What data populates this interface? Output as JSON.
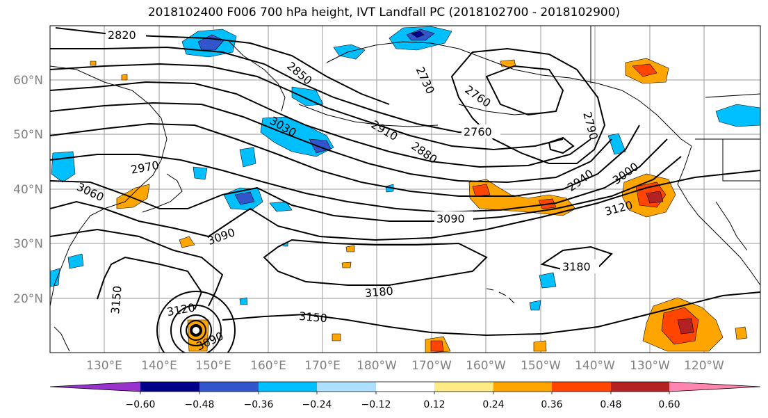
{
  "title": "2018102400 F006 700 hPa height, IVT Landfall PC (2018102700 - 2018102900)",
  "lat_labels": [
    "60°N",
    "50°N",
    "40°N",
    "30°N",
    "20°N"
  ],
  "lon_labels": [
    "130°E",
    "140°E",
    "150°E",
    "160°E",
    "170°E",
    "180°W",
    "170°W",
    "160°W",
    "150°W",
    "140°W",
    "130°W",
    "120°W"
  ],
  "contour_labels": [
    "2820",
    "2850",
    "2730",
    "2760",
    "2760",
    "2790",
    "3030",
    "2910",
    "2880",
    "2970",
    "3060",
    "3090",
    "3090",
    "2940",
    "3000",
    "3120",
    "3180",
    "3180",
    "3150",
    "3120",
    "3150",
    "3090"
  ],
  "colorbar": {
    "colors": [
      "#9932CC",
      "#00008B",
      "#3355CC",
      "#00BFFF",
      "#ADDFFF",
      "#FFFFFF",
      "#FFFFFF",
      "#FFEB85",
      "#FFA500",
      "#FF4500",
      "#B22222",
      "#FF85B0"
    ],
    "tick_labels": [
      "−0.60",
      "−0.48",
      "−0.36",
      "−0.24",
      "−0.12",
      "0.12",
      "0.24",
      "0.36",
      "0.48",
      "0.60"
    ]
  }
}
